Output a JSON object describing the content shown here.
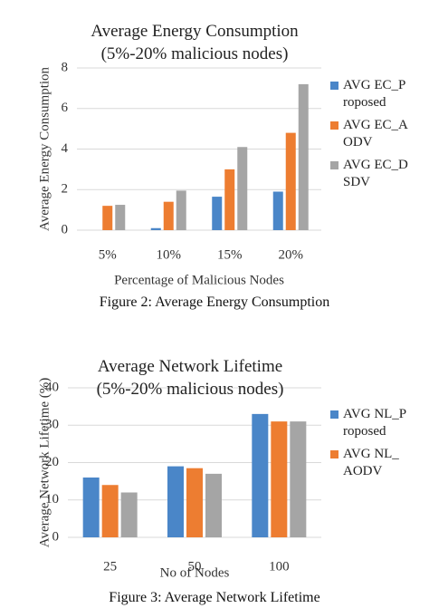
{
  "chart_data": [
    {
      "type": "bar",
      "title": "Average Energy Consumption (5%-20% malicious nodes)",
      "y_label": "Average Energy Consumption",
      "x_label": "Percentage of Malicious Nodes",
      "categories": [
        "5%",
        "10%",
        "15%",
        "20%"
      ],
      "series": [
        {
          "name": "AVG EC_Proposed",
          "color": "#4a86c8",
          "values": [
            0,
            0.1,
            1.65,
            1.9
          ]
        },
        {
          "name": "AVG EC_AODV",
          "color": "#ed7d31",
          "values": [
            1.2,
            1.4,
            3.0,
            4.8
          ]
        },
        {
          "name": "AVG EC_DSDV",
          "color": "#a5a5a5",
          "values": [
            1.25,
            1.95,
            4.1,
            7.2
          ]
        }
      ],
      "ylim": [
        0,
        8
      ],
      "yticks": [
        0,
        2,
        4,
        6,
        8
      ],
      "grid": true,
      "legend": "right",
      "caption": "Figure 2: Average Energy Consumption"
    },
    {
      "type": "bar",
      "title": "Average Network Lifetime (5%-20% malicious nodes)",
      "y_label": "Average Network Lifetime (%)",
      "x_label": "No of Nodes",
      "categories": [
        "25",
        "50",
        "100"
      ],
      "series": [
        {
          "name": "AVG NL_Proposed",
          "color": "#4a86c8",
          "values": [
            16,
            19,
            33
          ]
        },
        {
          "name": "AVG NL_AODV",
          "color": "#ed7d31",
          "values": [
            14,
            18.5,
            31
          ]
        },
        {
          "color": "#a5a5a5",
          "values": [
            12,
            17,
            31
          ]
        }
      ],
      "ylim": [
        0,
        40
      ],
      "yticks": [
        0,
        10,
        20,
        30,
        40
      ],
      "grid": true,
      "legend": "right",
      "caption": "Figure 3: Average Network Lifetime"
    }
  ]
}
